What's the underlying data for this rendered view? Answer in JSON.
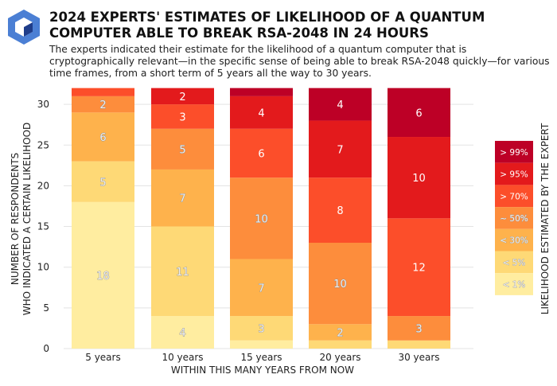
{
  "title": "2024 EXPERTS' ESTIMATES OF LIKELIHOOD OF A QUANTUM COMPUTER ABLE TO BREAK RSA-2048 IN 24 HOURS",
  "subtitle": "The experts indicated their estimate for the likelihood of a quantum computer that is cryptographically relevant—in the specific sense of being able to break RSA-2048 quickly—for various time frames, from a short term of 5 years all the way to 30 years.",
  "logo": "cube-logo",
  "chart_data": {
    "type": "bar",
    "stacked": true,
    "xlabel": "WITHIN THIS MANY YEARS FROM NOW",
    "ylabel": [
      "NUMBER OF RESPONDENTS",
      "WHO INDICATED A CERTAIN LIKELIHOOD"
    ],
    "legend_title": "LIKELIHOOD ESTIMATED BY THE EXPERT",
    "legend_placement": "right",
    "categories": [
      "5 years",
      "10 years",
      "15 years",
      "20 years",
      "30 years"
    ],
    "yticks": [
      0,
      5,
      10,
      15,
      20,
      25,
      30
    ],
    "ylim": [
      0,
      32
    ],
    "grid": true,
    "series": [
      {
        "name": "< 1%",
        "color": "#ffeda0",
        "values": [
          18,
          4,
          1,
          0,
          0
        ]
      },
      {
        "name": "< 5%",
        "color": "#fed976",
        "values": [
          5,
          11,
          3,
          1,
          1
        ]
      },
      {
        "name": "< 30%",
        "color": "#feb24c",
        "values": [
          6,
          7,
          7,
          2,
          0
        ]
      },
      {
        "name": "~ 50%",
        "color": "#fd8d3c",
        "values": [
          2,
          5,
          10,
          10,
          3
        ]
      },
      {
        "name": "> 70%",
        "color": "#fc4e2a",
        "values": [
          1,
          3,
          6,
          8,
          12
        ]
      },
      {
        "name": "> 95%",
        "color": "#e31a1c",
        "values": [
          0,
          2,
          4,
          7,
          10
        ]
      },
      {
        "name": "> 99%",
        "color": "#bd0026",
        "values": [
          0,
          0,
          1,
          4,
          6
        ]
      }
    ]
  }
}
